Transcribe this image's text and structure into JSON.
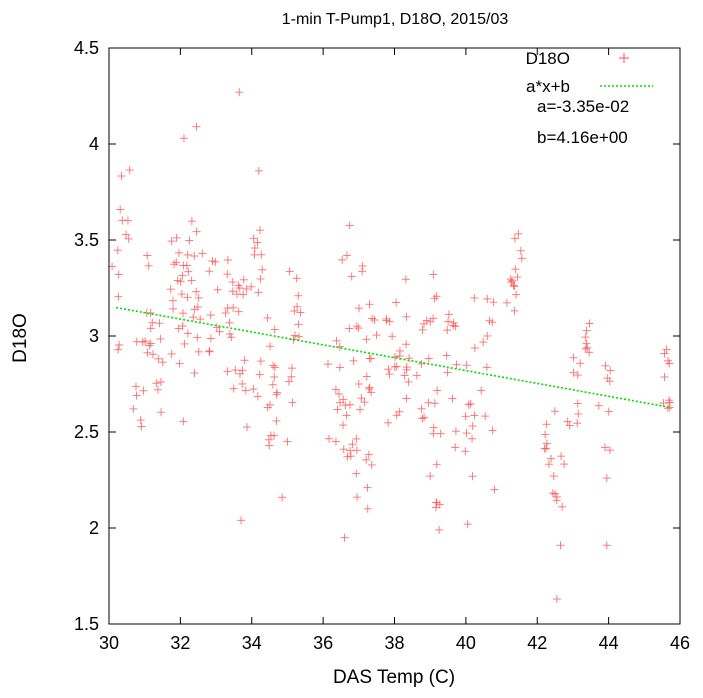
{
  "chart_data": {
    "type": "scatter",
    "title": "1-min T-Pump1, D18O, 2015/03",
    "xlabel": "DAS Temp (C)",
    "ylabel": "D18O",
    "xlim": [
      30,
      46
    ],
    "ylim": [
      1.5,
      4.5
    ],
    "xticks": [
      "30",
      "32",
      "34",
      "36",
      "38",
      "40",
      "42",
      "44",
      "46"
    ],
    "yticks": [
      "1.5",
      "2",
      "2.5",
      "3",
      "3.5",
      "4",
      "4.5"
    ],
    "grid": false,
    "legend_position": "top-right",
    "colors": {
      "points": "#ff5555",
      "fit": "#00dd00",
      "axes": "#000000"
    },
    "series": [
      {
        "name": "D18O",
        "marker": "plus",
        "clusters": [
          {
            "x": 30.2,
            "yrange": [
              2.7,
              3.45
            ],
            "count": 6
          },
          {
            "x": 30.45,
            "yrange": [
              3.4,
              3.95
            ],
            "count": 7
          },
          {
            "x": 30.8,
            "yrange": [
              2.42,
              3.05
            ],
            "count": 8
          },
          {
            "x": 31.1,
            "yrange": [
              2.9,
              3.45
            ],
            "count": 10
          },
          {
            "x": 31.4,
            "yrange": [
              2.6,
              3.15
            ],
            "count": 9
          },
          {
            "x": 31.9,
            "yrange": [
              2.7,
              3.55
            ],
            "count": 14
          },
          {
            "x": 32.15,
            "yrange": [
              2.55,
              3.5
            ],
            "count": 12
          },
          {
            "x": 32.45,
            "yrange": [
              2.8,
              3.7
            ],
            "count": 14
          },
          {
            "x": 32.95,
            "yrange": [
              2.85,
              3.4
            ],
            "count": 10
          },
          {
            "x": 33.4,
            "yrange": [
              2.7,
              3.55
            ],
            "count": 12
          },
          {
            "x": 33.7,
            "yrange": [
              2.5,
              3.3
            ],
            "count": 14
          },
          {
            "x": 34.15,
            "yrange": [
              2.6,
              3.6
            ],
            "count": 14
          },
          {
            "x": 34.6,
            "yrange": [
              2.4,
              3.1
            ],
            "count": 16
          },
          {
            "x": 35.2,
            "yrange": [
              2.65,
              3.35
            ],
            "count": 14
          },
          {
            "x": 36.3,
            "yrange": [
              2.35,
              3.1
            ],
            "count": 10
          },
          {
            "x": 36.7,
            "yrange": [
              2.3,
              3.6
            ],
            "count": 16
          },
          {
            "x": 37.1,
            "yrange": [
              2.1,
              3.45
            ],
            "count": 16
          },
          {
            "x": 37.35,
            "yrange": [
              2.3,
              3.2
            ],
            "count": 12
          },
          {
            "x": 37.9,
            "yrange": [
              2.5,
              3.2
            ],
            "count": 12
          },
          {
            "x": 38.25,
            "yrange": [
              2.6,
              3.35
            ],
            "count": 12
          },
          {
            "x": 38.8,
            "yrange": [
              2.55,
              3.2
            ],
            "count": 10
          },
          {
            "x": 39.15,
            "yrange": [
              2.1,
              3.35
            ],
            "count": 16
          },
          {
            "x": 39.6,
            "yrange": [
              2.3,
              3.2
            ],
            "count": 12
          },
          {
            "x": 40.1,
            "yrange": [
              2.25,
              3.2
            ],
            "count": 12
          },
          {
            "x": 40.6,
            "yrange": [
              2.5,
              3.2
            ],
            "count": 10
          },
          {
            "x": 41.2,
            "yrange": [
              3.1,
              3.35
            ],
            "count": 6
          },
          {
            "x": 41.4,
            "yrange": [
              3.15,
              3.55
            ],
            "count": 8
          },
          {
            "x": 42.35,
            "yrange": [
              2.15,
              2.65
            ],
            "count": 10
          },
          {
            "x": 42.6,
            "yrange": [
              1.95,
              2.45
            ],
            "count": 6
          },
          {
            "x": 43.0,
            "yrange": [
              2.5,
              2.9
            ],
            "count": 8
          },
          {
            "x": 43.3,
            "yrange": [
              2.85,
              3.15
            ],
            "count": 8
          },
          {
            "x": 43.9,
            "yrange": [
              2.4,
              2.9
            ],
            "count": 8
          },
          {
            "x": 45.7,
            "yrange": [
              2.55,
              3.0
            ],
            "count": 10
          }
        ],
        "outliers": [
          {
            "x": 33.65,
            "y": 4.27
          },
          {
            "x": 32.1,
            "y": 4.03
          },
          {
            "x": 32.45,
            "y": 4.09
          },
          {
            "x": 34.2,
            "y": 3.86
          },
          {
            "x": 33.7,
            "y": 2.04
          },
          {
            "x": 34.85,
            "y": 2.16
          },
          {
            "x": 36.6,
            "y": 1.95
          },
          {
            "x": 37.25,
            "y": 2.1
          },
          {
            "x": 39.25,
            "y": 1.99
          },
          {
            "x": 40.05,
            "y": 2.02
          },
          {
            "x": 42.65,
            "y": 1.91
          },
          {
            "x": 42.55,
            "y": 1.63
          },
          {
            "x": 43.95,
            "y": 1.91
          },
          {
            "x": 43.95,
            "y": 2.26
          },
          {
            "x": 35.0,
            "y": 2.45
          },
          {
            "x": 40.8,
            "y": 2.2
          }
        ]
      },
      {
        "name": "a*x+b",
        "type": "line",
        "style": "dotted",
        "slope": -0.0335,
        "intercept": 4.16
      }
    ],
    "annotations": [
      "a=-3.35e-02",
      "b=4.16e+00"
    ]
  }
}
